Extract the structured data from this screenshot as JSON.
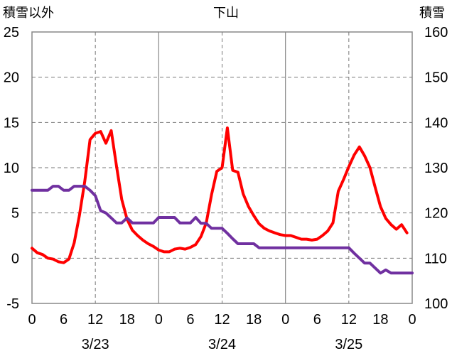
{
  "chart_data": {
    "type": "line",
    "title": "下山",
    "ylabel_left": "積雪以外",
    "ylabel_right": "積雪",
    "ylim_left": [
      -5,
      25
    ],
    "ylim_right": [
      100,
      160
    ],
    "yticks_left": [
      -5,
      0,
      5,
      10,
      15,
      20,
      25
    ],
    "yticks_right": [
      100,
      110,
      120,
      130,
      140,
      150,
      160
    ],
    "x_hours": [
      0,
      72
    ],
    "xtick_labels": [
      "0",
      "6",
      "12",
      "18",
      "0",
      "6",
      "12",
      "18",
      "0",
      "6",
      "12",
      "18",
      "0"
    ],
    "date_labels": [
      "3/23",
      "3/24",
      "3/25"
    ],
    "grid": true,
    "series": [
      {
        "axis": "left",
        "color": "#ff0000",
        "points": [
          [
            0,
            1.1
          ],
          [
            1,
            0.6
          ],
          [
            2,
            0.4
          ],
          [
            3,
            0.0
          ],
          [
            4,
            -0.1
          ],
          [
            5,
            -0.4
          ],
          [
            6,
            -0.5
          ],
          [
            7,
            -0.1
          ],
          [
            8,
            1.7
          ],
          [
            9,
            4.8
          ],
          [
            10,
            8.5
          ],
          [
            11,
            13.1
          ],
          [
            12,
            13.8
          ],
          [
            13,
            14.0
          ],
          [
            14,
            12.7
          ],
          [
            15,
            14.1
          ],
          [
            16,
            10.2
          ],
          [
            17,
            6.5
          ],
          [
            18,
            4.3
          ],
          [
            19,
            3.1
          ],
          [
            20,
            2.5
          ],
          [
            21,
            2.0
          ],
          [
            22,
            1.6
          ],
          [
            23,
            1.3
          ],
          [
            24,
            0.9
          ],
          [
            25,
            0.7
          ],
          [
            26,
            0.7
          ],
          [
            27,
            1.0
          ],
          [
            28,
            1.1
          ],
          [
            29,
            1.0
          ],
          [
            30,
            1.2
          ],
          [
            31,
            1.5
          ],
          [
            32,
            2.4
          ],
          [
            33,
            3.9
          ],
          [
            34,
            7.0
          ],
          [
            35,
            9.6
          ],
          [
            36,
            10.0
          ],
          [
            37,
            14.4
          ],
          [
            38,
            9.7
          ],
          [
            39,
            9.5
          ],
          [
            40,
            7.1
          ],
          [
            41,
            5.7
          ],
          [
            42,
            4.7
          ],
          [
            43,
            3.8
          ],
          [
            44,
            3.3
          ],
          [
            45,
            3.0
          ],
          [
            46,
            2.8
          ],
          [
            47,
            2.6
          ],
          [
            48,
            2.5
          ],
          [
            49,
            2.5
          ],
          [
            50,
            2.3
          ],
          [
            51,
            2.1
          ],
          [
            52,
            2.1
          ],
          [
            53,
            2.0
          ],
          [
            54,
            2.1
          ],
          [
            55,
            2.5
          ],
          [
            56,
            3.0
          ],
          [
            57,
            3.9
          ],
          [
            58,
            7.4
          ],
          [
            59,
            8.7
          ],
          [
            60,
            10.1
          ],
          [
            61,
            11.4
          ],
          [
            62,
            12.3
          ],
          [
            63,
            11.3
          ],
          [
            64,
            10.0
          ],
          [
            65,
            7.8
          ],
          [
            66,
            5.7
          ],
          [
            67,
            4.4
          ],
          [
            68,
            3.7
          ],
          [
            69,
            3.2
          ],
          [
            70,
            3.7
          ],
          [
            71,
            2.8
          ]
        ]
      },
      {
        "axis": "right",
        "color": "#7030a0",
        "points": [
          [
            0,
            125
          ],
          [
            3,
            125
          ],
          [
            4,
            125.9
          ],
          [
            5,
            125.9
          ],
          [
            6,
            125
          ],
          [
            7,
            125
          ],
          [
            8,
            125.9
          ],
          [
            10,
            125.9
          ],
          [
            11,
            125
          ],
          [
            12,
            123.8
          ],
          [
            13,
            120.5
          ],
          [
            14,
            120
          ],
          [
            15,
            118.9
          ],
          [
            16,
            117.8
          ],
          [
            17,
            117.8
          ],
          [
            18,
            118.9
          ],
          [
            19,
            117.8
          ],
          [
            23,
            117.8
          ],
          [
            24,
            119
          ],
          [
            27,
            119
          ],
          [
            28,
            117.8
          ],
          [
            30,
            117.8
          ],
          [
            31,
            119
          ],
          [
            32,
            117.7
          ],
          [
            33,
            117.7
          ],
          [
            34,
            116.6
          ],
          [
            36,
            116.6
          ],
          [
            37,
            115.5
          ],
          [
            38,
            114.3
          ],
          [
            39,
            113.2
          ],
          [
            42,
            113.2
          ],
          [
            43,
            112.3
          ],
          [
            60,
            112.3
          ],
          [
            61,
            111.1
          ],
          [
            62,
            110
          ],
          [
            63,
            108.9
          ],
          [
            64,
            108.9
          ],
          [
            65,
            107.8
          ],
          [
            66,
            106.7
          ],
          [
            67,
            107.4
          ],
          [
            68,
            106.7
          ],
          [
            72,
            106.7
          ]
        ]
      }
    ]
  }
}
